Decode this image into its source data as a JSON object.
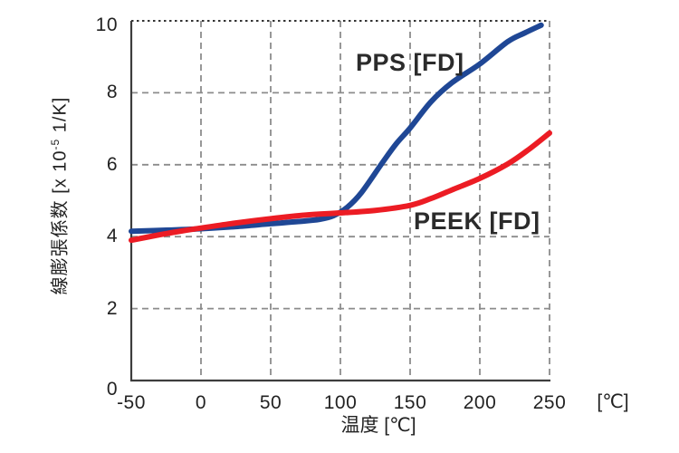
{
  "chart_data": {
    "type": "line",
    "title": "",
    "xlabel": "温度 [℃]",
    "ylabel": "線膨張係数 [x 10⁻⁵ 1/K]",
    "ylabel_parts": {
      "pre": "線膨張係数 [x 10",
      "sup": "-5",
      "post": " 1/K]"
    },
    "x_axis_unit": "[℃]",
    "xlim": [
      -50,
      250
    ],
    "ylim": [
      0,
      10
    ],
    "xticks": [
      -50,
      0,
      50,
      100,
      150,
      200,
      250
    ],
    "yticks": [
      0,
      2,
      4,
      6,
      8,
      10
    ],
    "xtick_labels": [
      "-50",
      "0",
      "50",
      "100",
      "150",
      "200",
      "250"
    ],
    "ytick_labels": [
      "0",
      "2",
      "4",
      "6",
      "8",
      "10"
    ],
    "grid": "dashed",
    "legend_position": "inline-annotations",
    "series": [
      {
        "name": "PPS [FD]",
        "color": "#1F4795",
        "points": [
          [
            -50,
            4.15
          ],
          [
            -25,
            4.18
          ],
          [
            0,
            4.22
          ],
          [
            25,
            4.28
          ],
          [
            50,
            4.36
          ],
          [
            70,
            4.42
          ],
          [
            85,
            4.48
          ],
          [
            95,
            4.58
          ],
          [
            105,
            4.82
          ],
          [
            115,
            5.22
          ],
          [
            130,
            6.05
          ],
          [
            140,
            6.58
          ],
          [
            150,
            7.02
          ],
          [
            165,
            7.75
          ],
          [
            180,
            8.28
          ],
          [
            200,
            8.8
          ],
          [
            220,
            9.42
          ],
          [
            232,
            9.66
          ],
          [
            244,
            9.88
          ]
        ]
      },
      {
        "name": "PEEK [FD]",
        "color": "#EC1C24",
        "points": [
          [
            -50,
            3.9
          ],
          [
            -30,
            4.05
          ],
          [
            -15,
            4.15
          ],
          [
            0,
            4.24
          ],
          [
            25,
            4.38
          ],
          [
            50,
            4.5
          ],
          [
            75,
            4.6
          ],
          [
            100,
            4.66
          ],
          [
            125,
            4.73
          ],
          [
            150,
            4.87
          ],
          [
            165,
            5.06
          ],
          [
            180,
            5.3
          ],
          [
            200,
            5.62
          ],
          [
            220,
            6.02
          ],
          [
            235,
            6.42
          ],
          [
            250,
            6.88
          ]
        ]
      }
    ],
    "annotations": [
      {
        "text": "PPS [FD]",
        "series": "PPS [FD]"
      },
      {
        "text": "PEEK [FD]",
        "series": "PEEK [FD]"
      }
    ]
  },
  "colors": {
    "background": "#FFFFFF",
    "axis": "#3D3D3D",
    "gridline": "#8C8C8C",
    "top_border_dotted": "#333333",
    "text": "#222222",
    "pps_blue": "#1F4795",
    "peek_red": "#EC1C24"
  }
}
